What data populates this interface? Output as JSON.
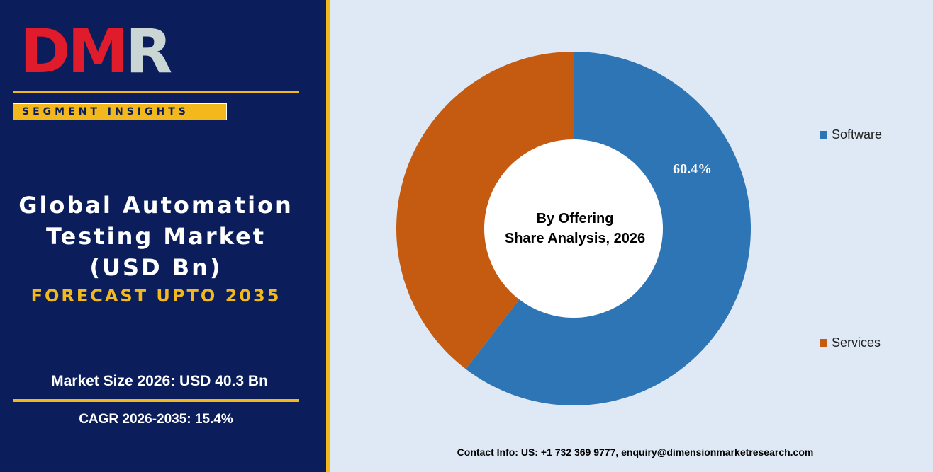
{
  "brand": {
    "logo_text": "DMR",
    "segment_label": "SEGMENT INSIGHTS"
  },
  "report": {
    "title_lines": [
      "Global Automation",
      "Testing Market",
      "(USD Bn)"
    ],
    "forecast": "FORECAST UPTO 2035",
    "market_size": "Market Size 2026: USD 40.3 Bn",
    "cagr": "CAGR 2026-2035: 15.4%"
  },
  "contact": "Contact Info: US: +1 732 369 9777, enquiry@dimensionmarketresearch.com",
  "colors": {
    "panel": "#0b1e5b",
    "accent": "#f2b81c",
    "chart_bg": "#dfe9f5"
  },
  "chart_data": {
    "type": "pie",
    "style": "donut",
    "center_text": [
      "By Offering",
      "Share Analysis, 2026"
    ],
    "categories": [
      "Software",
      "Services"
    ],
    "values": [
      60.4,
      39.6
    ],
    "data_labels": [
      "60.4%",
      ""
    ],
    "colors": [
      "#2e75b6",
      "#c55a11"
    ],
    "legend_position": "right"
  }
}
